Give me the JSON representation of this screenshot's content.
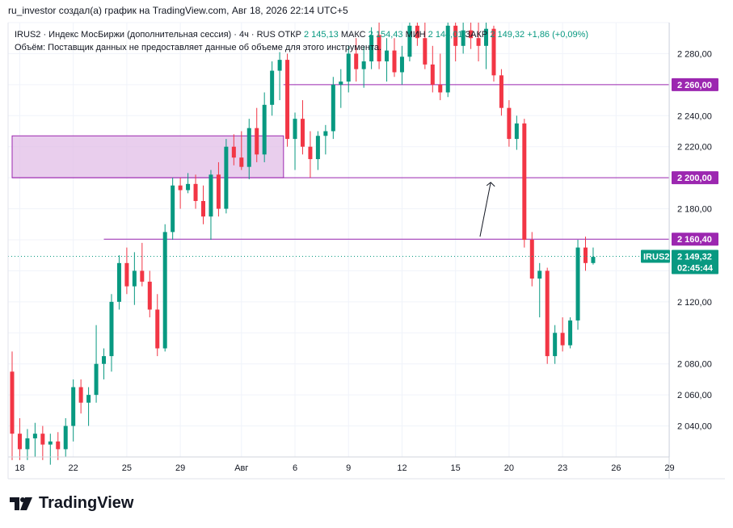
{
  "header": {
    "attribution": "ru_investor создал(а) график на TradingView.com, Авг 18, 2026 22:14 UTC+5"
  },
  "legend": {
    "line1_prefix": "IRUS2 · Индекс МосБиржи (дополнительная сессия) · 4ч · RUS",
    "open_label": "ОТКР",
    "open_value": "2 145,13",
    "high_label": "МАКС",
    "high_value": "2 154,43",
    "low_label": "МИН",
    "low_value": "2 144,01",
    "close_label": "ЗАКР",
    "close_value": "2 149,32",
    "change_value": "+1,86 (+0,09%)",
    "volume_line": "Объём: Поставщик данных не предоставляет данные об объеме для этого инструмента."
  },
  "branding": {
    "logo_text": "TradingView",
    "logo_mark": "17"
  },
  "colors": {
    "up": "#089981",
    "down": "#F23645",
    "level_line": "#9C27B0",
    "zone_fill": "#E1BEE7",
    "price_tag": "#089981",
    "grid": "#F0F3FA"
  },
  "chart_data": {
    "type": "candlestick",
    "symbol": "IRUS2",
    "timeframe": "4ч",
    "ylim": [
      2020,
      2300
    ],
    "y_ticks": [
      "2 280,00",
      "2 240,00",
      "2 220,00",
      "2 180,00",
      "2 120,00",
      "2 080,00",
      "2 060,00",
      "2 040,00"
    ],
    "y_tick_values": [
      2280,
      2240,
      2220,
      2180,
      2120,
      2080,
      2060,
      2040
    ],
    "x_ticks": [
      "18",
      "22",
      "25",
      "29",
      "Авг",
      "6",
      "9",
      "12",
      "15",
      "20",
      "23",
      "26",
      "29"
    ],
    "x_tick_index": [
      1,
      8,
      15,
      22,
      30,
      37,
      44,
      51,
      58,
      65,
      72,
      79,
      86
    ],
    "levels": [
      {
        "label": "2 260,00",
        "value": 2260,
        "from_index": 35.5
      },
      {
        "label": "2 200,00",
        "value": 2200,
        "from_index": 0
      },
      {
        "label": "2 160,40",
        "value": 2160.4,
        "from_index": 12
      }
    ],
    "zone": {
      "top": 2227,
      "bottom": 2200,
      "from_index": 0,
      "to_index": 35.5
    },
    "last_price": {
      "symbol": "IRUS2",
      "label": "2 149,32",
      "value": 2149.32,
      "countdown": "02:45:44"
    },
    "arrow": {
      "from": [
        61.2,
        2162
      ],
      "to": [
        62.6,
        2197
      ]
    },
    "candles": [
      [
        2075,
        2088,
        2018,
        2035
      ],
      [
        2035,
        2045,
        2018,
        2025
      ],
      [
        2025,
        2038,
        2018,
        2032
      ],
      [
        2032,
        2042,
        2020,
        2035
      ],
      [
        2035,
        2040,
        2018,
        2028
      ],
      [
        2028,
        2035,
        2015,
        2030
      ],
      [
        2030,
        2036,
        2018,
        2025
      ],
      [
        2025,
        2045,
        2020,
        2040
      ],
      [
        2040,
        2070,
        2030,
        2065
      ],
      [
        2065,
        2070,
        2048,
        2055
      ],
      [
        2055,
        2065,
        2040,
        2060
      ],
      [
        2060,
        2105,
        2055,
        2080
      ],
      [
        2080,
        2090,
        2070,
        2085
      ],
      [
        2085,
        2125,
        2075,
        2120
      ],
      [
        2120,
        2150,
        2115,
        2145
      ],
      [
        2145,
        2155,
        2125,
        2130
      ],
      [
        2130,
        2152,
        2118,
        2140
      ],
      [
        2140,
        2158,
        2130,
        2133
      ],
      [
        2133,
        2140,
        2110,
        2115
      ],
      [
        2115,
        2125,
        2085,
        2090
      ],
      [
        2090,
        2170,
        2088,
        2165
      ],
      [
        2165,
        2200,
        2160,
        2195
      ],
      [
        2195,
        2200,
        2180,
        2192
      ],
      [
        2192,
        2203,
        2190,
        2196
      ],
      [
        2196,
        2202,
        2180,
        2185
      ],
      [
        2185,
        2195,
        2170,
        2175
      ],
      [
        2175,
        2205,
        2160,
        2202
      ],
      [
        2202,
        2210,
        2175,
        2180
      ],
      [
        2180,
        2225,
        2177,
        2220
      ],
      [
        2220,
        2228,
        2208,
        2213
      ],
      [
        2213,
        2230,
        2205,
        2207
      ],
      [
        2207,
        2238,
        2199,
        2232
      ],
      [
        2232,
        2245,
        2210,
        2215
      ],
      [
        2215,
        2255,
        2210,
        2247
      ],
      [
        2247,
        2275,
        2240,
        2269
      ],
      [
        2269,
        2281,
        2250,
        2276
      ],
      [
        2276,
        2280,
        2220,
        2225
      ],
      [
        2225,
        2242,
        2205,
        2238
      ],
      [
        2238,
        2250,
        2215,
        2220
      ],
      [
        2220,
        2230,
        2200,
        2212
      ],
      [
        2212,
        2230,
        2205,
        2227
      ],
      [
        2227,
        2234,
        2215,
        2230
      ],
      [
        2230,
        2265,
        2225,
        2260
      ],
      [
        2260,
        2270,
        2245,
        2262
      ],
      [
        2262,
        2285,
        2255,
        2280
      ],
      [
        2280,
        2290,
        2262,
        2270
      ],
      [
        2270,
        2285,
        2258,
        2275
      ],
      [
        2275,
        2297,
        2270,
        2292
      ],
      [
        2292,
        2300,
        2270,
        2275
      ],
      [
        2275,
        2290,
        2262,
        2282
      ],
      [
        2282,
        2290,
        2265,
        2268
      ],
      [
        2268,
        2285,
        2260,
        2278
      ],
      [
        2278,
        2300,
        2275,
        2298
      ],
      [
        2298,
        2300,
        2285,
        2290
      ],
      [
        2290,
        2300,
        2270,
        2273
      ],
      [
        2273,
        2285,
        2255,
        2260
      ],
      [
        2260,
        2280,
        2250,
        2255
      ],
      [
        2255,
        2300,
        2252,
        2298
      ],
      [
        2298,
        2300,
        2275,
        2285
      ],
      [
        2285,
        2300,
        2280,
        2295
      ],
      [
        2295,
        2300,
        2283,
        2290
      ],
      [
        2290,
        2300,
        2275,
        2285
      ],
      [
        2285,
        2300,
        2270,
        2296
      ],
      [
        2296,
        2298,
        2262,
        2266
      ],
      [
        2266,
        2270,
        2240,
        2245
      ],
      [
        2245,
        2250,
        2220,
        2225
      ],
      [
        2225,
        2240,
        2218,
        2235
      ],
      [
        2235,
        2238,
        2155,
        2160
      ],
      [
        2160,
        2165,
        2130,
        2135
      ],
      [
        2135,
        2145,
        2110,
        2140
      ],
      [
        2140,
        2142,
        2080,
        2085
      ],
      [
        2085,
        2105,
        2080,
        2100
      ],
      [
        2100,
        2110,
        2088,
        2092
      ],
      [
        2092,
        2110,
        2090,
        2108
      ],
      [
        2108,
        2160,
        2102,
        2155
      ],
      [
        2155,
        2162,
        2140,
        2145
      ],
      [
        2145,
        2155,
        2144,
        2149
      ]
    ]
  }
}
